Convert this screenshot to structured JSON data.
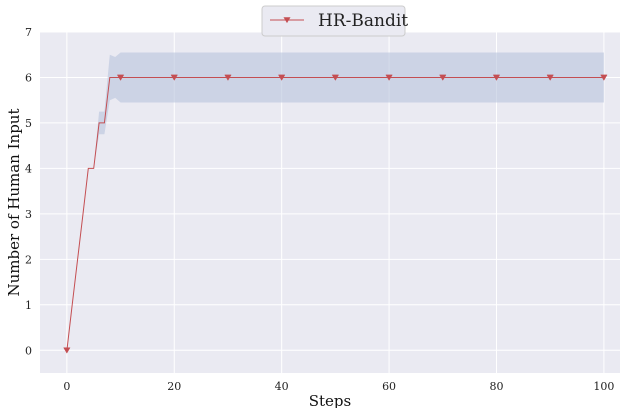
{
  "chart_data": {
    "type": "line",
    "title": "",
    "xlabel": "Steps",
    "ylabel": "Number of Human Input",
    "xlim": [
      -5,
      103
    ],
    "ylim": [
      -0.5,
      7.0
    ],
    "xticks": [
      0,
      20,
      40,
      60,
      80,
      100
    ],
    "yticks": [
      0,
      1,
      2,
      3,
      4,
      5,
      6,
      7
    ],
    "grid": true,
    "legend_position": "top-center",
    "colors": {
      "background": "#eaeaf2",
      "grid": "#ffffff",
      "line": "#c44e52",
      "band": "#b8c3dc"
    },
    "series": [
      {
        "name": "HR-Bandit",
        "marker": "triangle-down",
        "x": [
          0,
          1,
          2,
          3,
          4,
          5,
          6,
          7,
          8,
          9,
          10,
          20,
          30,
          40,
          50,
          60,
          70,
          80,
          90,
          100
        ],
        "y": [
          0,
          1,
          2,
          3,
          4,
          4,
          5,
          5,
          6,
          6,
          6,
          6,
          6,
          6,
          6,
          6,
          6,
          6,
          6,
          6
        ],
        "markers_x": [
          0,
          10,
          20,
          30,
          40,
          50,
          60,
          70,
          80,
          90,
          100
        ],
        "band": {
          "x": [
            0,
            1,
            2,
            3,
            4,
            5,
            6,
            7,
            8,
            9,
            10,
            100
          ],
          "lower": [
            0,
            1,
            2,
            3,
            4,
            4,
            4.75,
            4.75,
            5.5,
            5.55,
            5.45,
            5.45
          ],
          "upper": [
            0,
            1,
            2,
            3,
            4,
            4,
            5.25,
            5.25,
            6.5,
            6.45,
            6.55,
            6.55
          ]
        }
      }
    ]
  }
}
